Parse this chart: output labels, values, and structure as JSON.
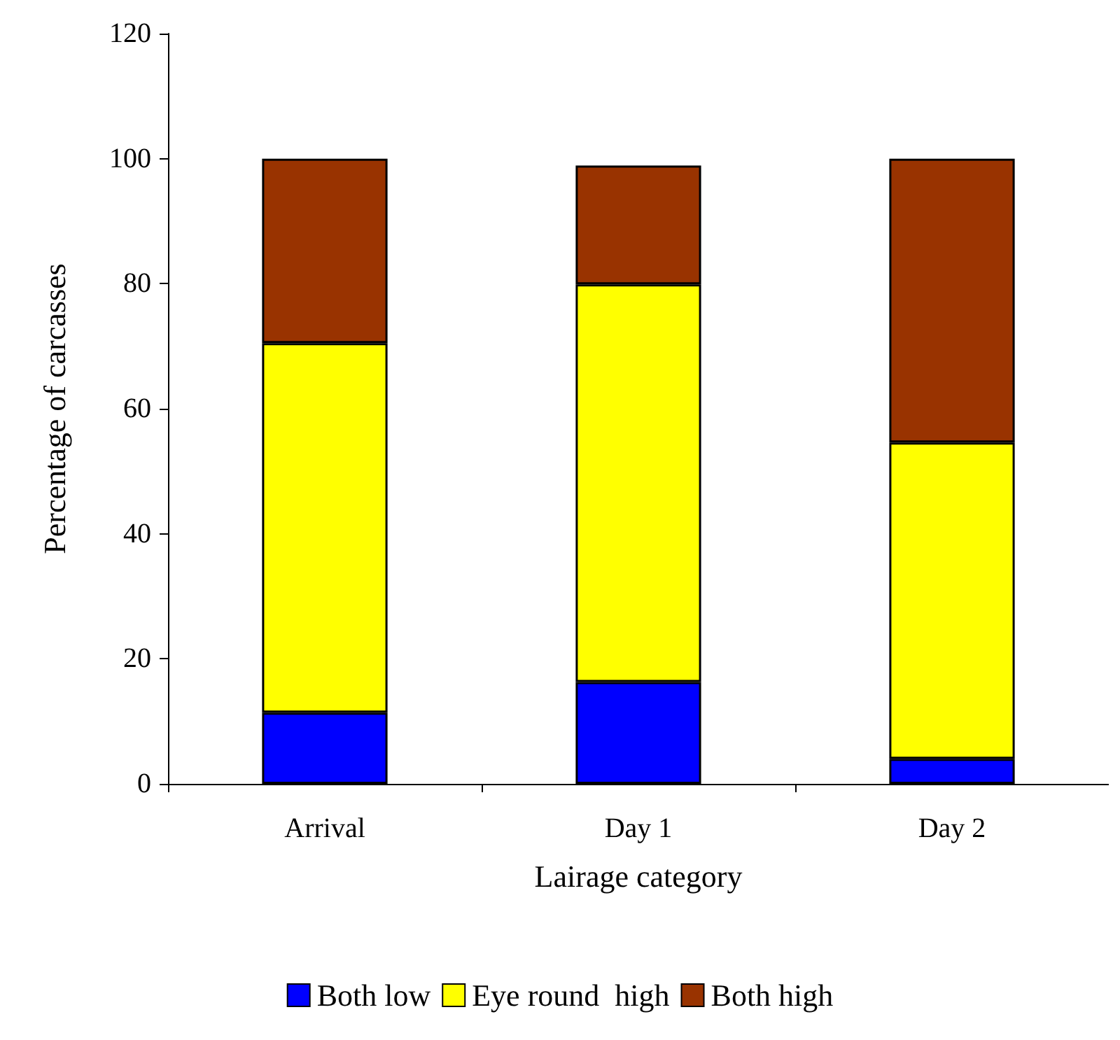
{
  "chart_data": {
    "type": "bar",
    "stacked": true,
    "xlabel": "Lairage category",
    "ylabel": "Percentage of carcasses",
    "categories": [
      "Arrival",
      "Day 1",
      "Day 2"
    ],
    "series": [
      {
        "name": "Both low",
        "color": "#0000ff",
        "values": [
          11.4,
          16.3,
          4.0
        ]
      },
      {
        "name": "Eye round  high",
        "color": "#ffff00",
        "values": [
          59.1,
          63.6,
          50.6
        ]
      },
      {
        "name": "Both high",
        "color": "#993300",
        "values": [
          29.5,
          19.0,
          45.4
        ]
      }
    ],
    "ylim": [
      0,
      120
    ],
    "yticks": [
      0,
      20,
      40,
      60,
      80,
      100,
      120
    ],
    "grid": false,
    "legend": "bottom"
  }
}
